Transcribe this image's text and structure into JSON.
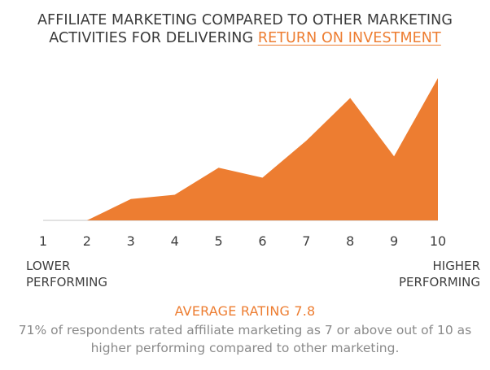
{
  "title": {
    "line1": "AFFILIATE MARKETING COMPARED TO OTHER MARKETING",
    "line2_prefix": "ACTIVITIES FOR DELIVERING ",
    "line2_highlight": "RETURN ON INVESTMENT"
  },
  "labels": {
    "lower_line1": "LOWER",
    "lower_line2": "PERFORMING",
    "higher_line1": "HIGHER",
    "higher_line2": "PERFORMING"
  },
  "average": "AVERAGE RATING 7.8",
  "note": "71% of respondents rated affiliate marketing as 7 or above out of 10 as higher performing compared to other marketing.",
  "colors": {
    "fill": "#ed7d31",
    "baseline": "#d9d9d9",
    "tick_text": "#3f3f3f"
  },
  "chart_data": {
    "type": "area",
    "x": [
      1,
      2,
      3,
      4,
      5,
      6,
      7,
      8,
      9,
      10
    ],
    "categories": [
      "1",
      "2",
      "3",
      "4",
      "5",
      "6",
      "7",
      "8",
      "9",
      "10"
    ],
    "values": [
      0,
      0,
      15,
      18,
      37,
      30,
      56,
      86,
      45,
      100
    ],
    "ylim": [
      0,
      100
    ],
    "xlabel": "",
    "ylabel": "",
    "grid": false,
    "legend": "none"
  }
}
